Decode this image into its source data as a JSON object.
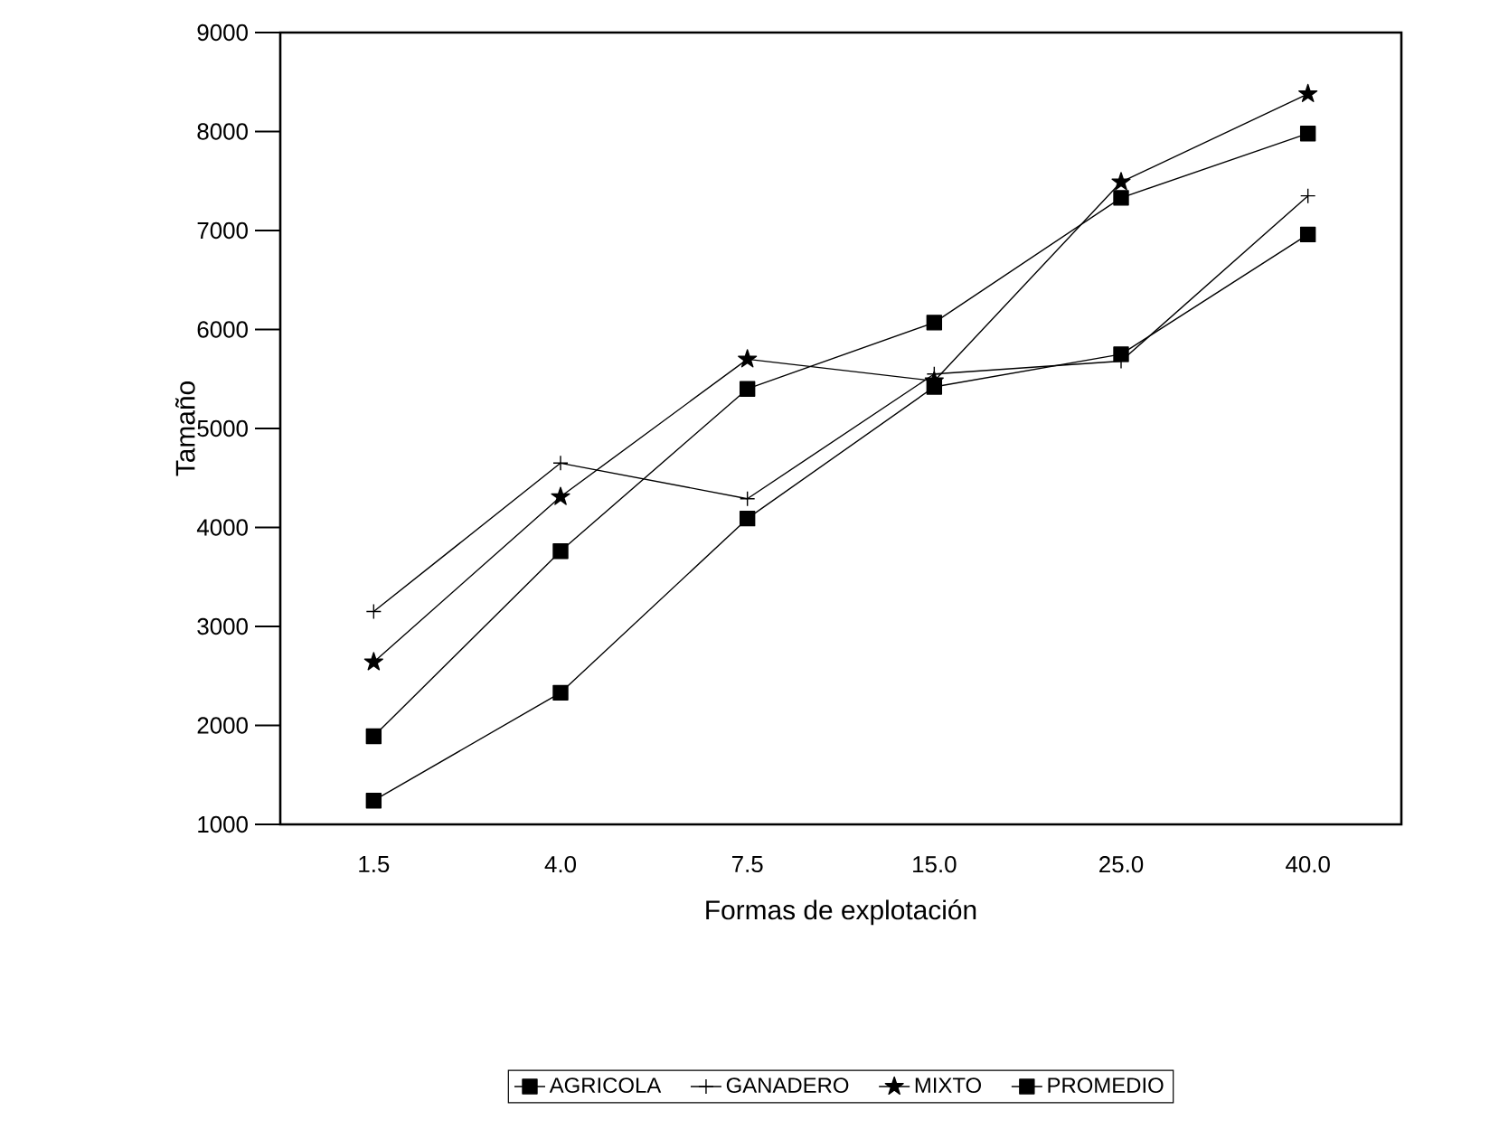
{
  "chart_data": {
    "type": "line",
    "xlabel": "Formas de explotación",
    "ylabel": "Tamaño",
    "categories": [
      "1.5",
      "4.0",
      "7.5",
      "15.0",
      "25.0",
      "40.0"
    ],
    "series": [
      {
        "name": "AGRICOLA",
        "color": "#000000",
        "marker": "square",
        "values": [
          1890,
          3760,
          5400,
          6070,
          7330,
          7980
        ]
      },
      {
        "name": "GANADERO",
        "color": "#000000",
        "marker": "cross",
        "values": [
          3150,
          4650,
          4290,
          5550,
          5680,
          7350
        ]
      },
      {
        "name": "MIXTO",
        "color": "#000000",
        "marker": "star",
        "values": [
          2640,
          4310,
          5700,
          5480,
          7490,
          8380
        ]
      },
      {
        "name": "PROMEDIO",
        "color": "#000000",
        "marker": "square",
        "values": [
          1240,
          2330,
          4090,
          5420,
          5750,
          6960
        ]
      }
    ],
    "ylim": [
      1000,
      9000
    ],
    "yticks": [
      1000,
      2000,
      3000,
      4000,
      5000,
      6000,
      7000,
      8000,
      9000
    ],
    "grid": false,
    "legend": "bottom",
    "line_style": "solid"
  }
}
